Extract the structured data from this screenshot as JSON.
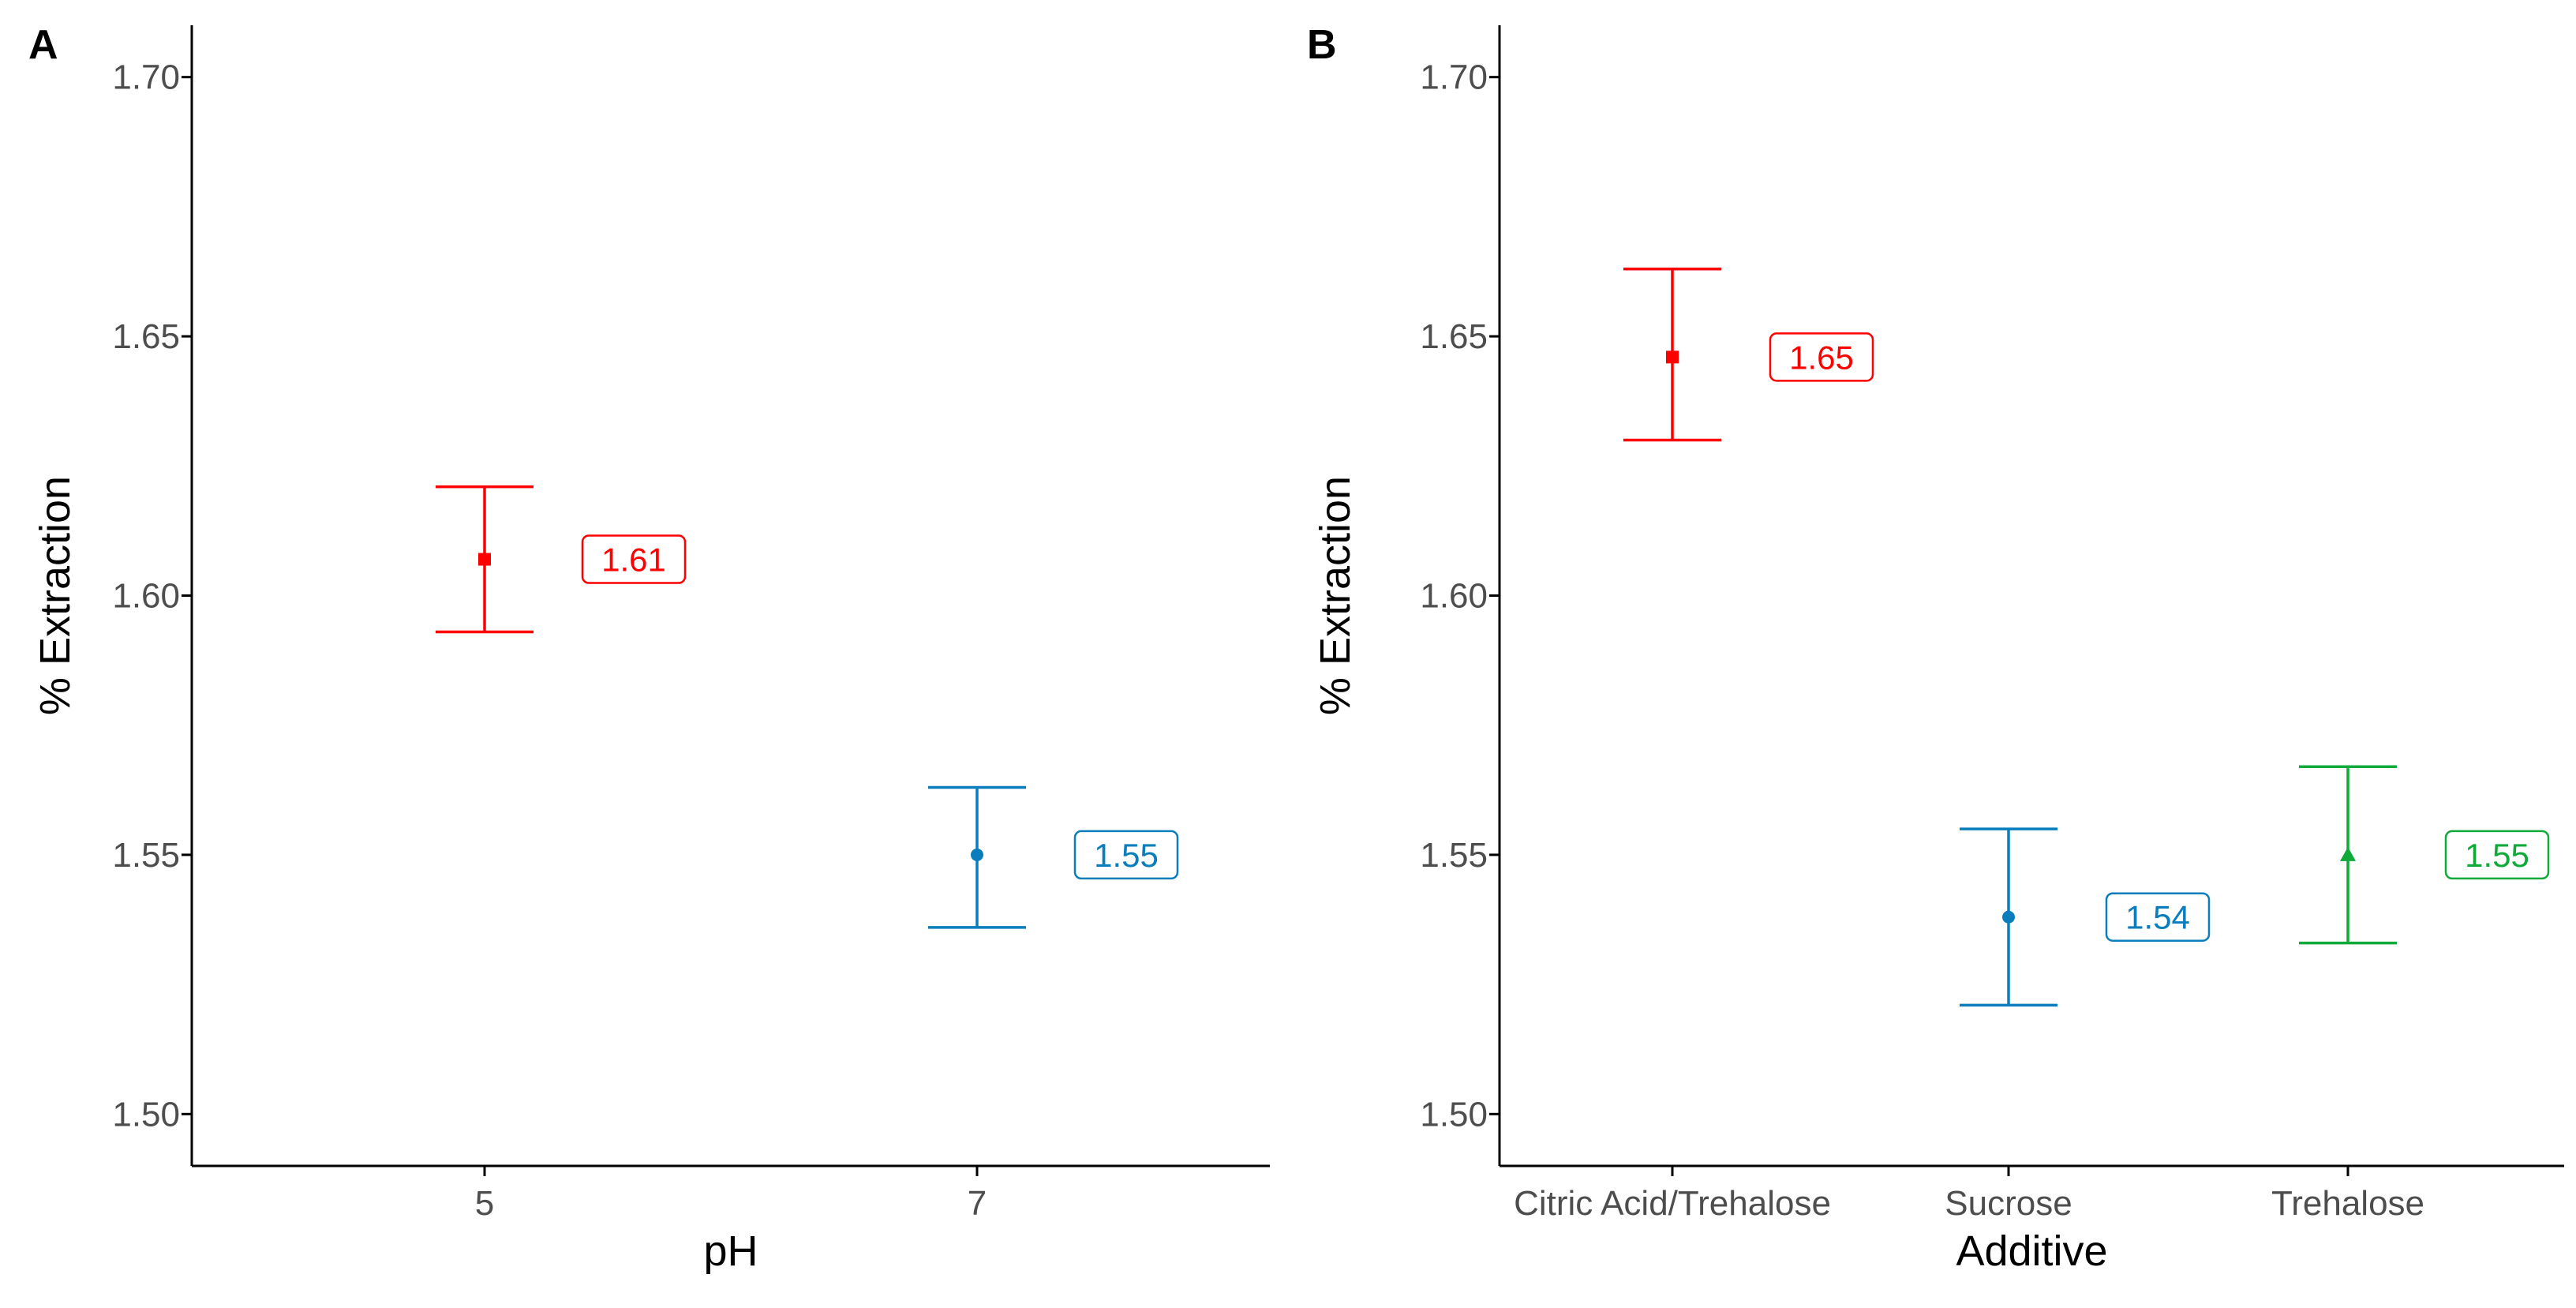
{
  "chart_data": [
    {
      "panel_label": "A",
      "type": "point-errorbar",
      "title": "",
      "xlabel": "pH",
      "ylabel": "% Extraction",
      "ylim": [
        1.49,
        1.71
      ],
      "yticks": [
        1.5,
        1.55,
        1.6,
        1.65,
        1.7
      ],
      "ytick_labels": [
        "1.50",
        "1.55",
        "1.60",
        "1.65",
        "1.70"
      ],
      "categories": [
        "5",
        "7"
      ],
      "points": [
        {
          "category": "5",
          "mean": 1.607,
          "lower": 1.593,
          "upper": 1.621,
          "label": "1.61",
          "color": "#ff0000",
          "shape": "square"
        },
        {
          "category": "7",
          "mean": 1.55,
          "lower": 1.536,
          "upper": 1.563,
          "label": "1.55",
          "color": "#0a7ebc",
          "shape": "circle"
        }
      ],
      "grid": false,
      "legend": "none"
    },
    {
      "panel_label": "B",
      "type": "point-errorbar",
      "title": "",
      "xlabel": "Additive",
      "ylabel": "% Extraction",
      "ylim": [
        1.49,
        1.71
      ],
      "yticks": [
        1.5,
        1.55,
        1.6,
        1.65,
        1.7
      ],
      "ytick_labels": [
        "1.50",
        "1.55",
        "1.60",
        "1.65",
        "1.70"
      ],
      "categories": [
        "Citric Acid/Trehalose",
        "Sucrose",
        "Trehalose"
      ],
      "points": [
        {
          "category": "Citric Acid/Trehalose",
          "mean": 1.646,
          "lower": 1.63,
          "upper": 1.663,
          "label": "1.65",
          "color": "#ff0000",
          "shape": "square"
        },
        {
          "category": "Sucrose",
          "mean": 1.538,
          "lower": 1.521,
          "upper": 1.555,
          "label": "1.54",
          "color": "#0a7ebc",
          "shape": "circle"
        },
        {
          "category": "Trehalose",
          "mean": 1.55,
          "lower": 1.533,
          "upper": 1.567,
          "label": "1.55",
          "color": "#10aa3a",
          "shape": "triangle"
        }
      ],
      "grid": false,
      "legend": "none"
    }
  ]
}
